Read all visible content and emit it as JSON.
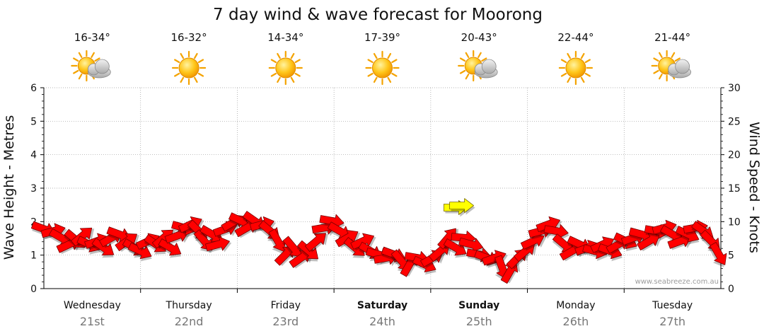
{
  "chart_data": {
    "type": "line",
    "title": "7 day wind & wave forecast for Moorong",
    "ylabel_left": "Wave Height - Metres",
    "ylabel_right": "Wind Speed - Knots",
    "ylim_left": [
      0,
      6
    ],
    "ylim_right": [
      0,
      30
    ],
    "left_ticks": [
      "0",
      "1",
      "2",
      "3",
      "4",
      "5",
      "6"
    ],
    "right_ticks": [
      "0",
      "5",
      "10",
      "15",
      "20",
      "25",
      "30"
    ],
    "grid": true,
    "watermark": "www.seabreeze.com.au",
    "days": [
      {
        "name": "Wednesday",
        "date": "21st",
        "temp": "16-34°",
        "weather": "partly-cloudy",
        "bold": false
      },
      {
        "name": "Thursday",
        "date": "22nd",
        "temp": "16-32°",
        "weather": "sunny",
        "bold": false
      },
      {
        "name": "Friday",
        "date": "23rd",
        "temp": "14-34°",
        "weather": "sunny",
        "bold": false
      },
      {
        "name": "Saturday",
        "date": "24th",
        "temp": "17-39°",
        "weather": "sunny",
        "bold": true
      },
      {
        "name": "Sunday",
        "date": "25th",
        "temp": "20-43°",
        "weather": "partly-cloudy",
        "bold": true
      },
      {
        "name": "Monday",
        "date": "26th",
        "temp": "22-44°",
        "weather": "sunny",
        "bold": false
      },
      {
        "name": "Tuesday",
        "date": "27th",
        "temp": "21-44°",
        "weather": "partly-cloudy",
        "bold": false
      }
    ],
    "wind_series": {
      "name": "Wind",
      "unit": "knots",
      "points": [
        {
          "t": 0.0,
          "speed": 8.9,
          "dir": 20
        },
        {
          "t": 0.1,
          "speed": 8.6,
          "dir": -15
        },
        {
          "t": 0.18,
          "speed": 7.6,
          "dir": 30
        },
        {
          "t": 0.26,
          "speed": 6.6,
          "dir": -25
        },
        {
          "t": 0.33,
          "speed": 7.3,
          "dir": 40
        },
        {
          "t": 0.4,
          "speed": 7.9,
          "dir": -40
        },
        {
          "t": 0.47,
          "speed": 6.6,
          "dir": 25
        },
        {
          "t": 0.55,
          "speed": 7.1,
          "dir": -20
        },
        {
          "t": 0.62,
          "speed": 6.1,
          "dir": 35
        },
        {
          "t": 0.7,
          "speed": 7.6,
          "dir": -30
        },
        {
          "t": 0.78,
          "speed": 8.1,
          "dir": 20
        },
        {
          "t": 0.86,
          "speed": 7.1,
          "dir": -35
        },
        {
          "t": 0.94,
          "speed": 6.1,
          "dir": 30
        },
        {
          "t": 1.0,
          "speed": 5.6,
          "dir": 25
        },
        {
          "t": 1.08,
          "speed": 7.1,
          "dir": -25
        },
        {
          "t": 1.16,
          "speed": 6.6,
          "dir": 35
        },
        {
          "t": 1.24,
          "speed": 7.6,
          "dir": -40
        },
        {
          "t": 1.31,
          "speed": 6.1,
          "dir": 30
        },
        {
          "t": 1.38,
          "speed": 7.9,
          "dir": -20
        },
        {
          "t": 1.45,
          "speed": 9.1,
          "dir": 15
        },
        {
          "t": 1.52,
          "speed": 9.6,
          "dir": -25
        },
        {
          "t": 1.6,
          "speed": 8.6,
          "dir": 45
        },
        {
          "t": 1.66,
          "speed": 7.1,
          "dir": 50
        },
        {
          "t": 1.74,
          "speed": 8.1,
          "dir": 30
        },
        {
          "t": 1.8,
          "speed": 6.6,
          "dir": -15
        },
        {
          "t": 1.88,
          "speed": 8.9,
          "dir": -20
        },
        {
          "t": 1.96,
          "speed": 9.9,
          "dir": -30
        },
        {
          "t": 2.04,
          "speed": 10.1,
          "dir": 25
        },
        {
          "t": 2.1,
          "speed": 9.1,
          "dir": -30
        },
        {
          "t": 2.18,
          "speed": 10.1,
          "dir": 35
        },
        {
          "t": 2.26,
          "speed": 9.6,
          "dir": -15
        },
        {
          "t": 2.34,
          "speed": 8.6,
          "dir": 40
        },
        {
          "t": 2.42,
          "speed": 7.1,
          "dir": 60
        },
        {
          "t": 2.5,
          "speed": 5.1,
          "dir": -45
        },
        {
          "t": 2.58,
          "speed": 6.1,
          "dir": 50
        },
        {
          "t": 2.66,
          "speed": 4.6,
          "dir": -35
        },
        {
          "t": 2.74,
          "speed": 5.6,
          "dir": 40
        },
        {
          "t": 2.82,
          "speed": 7.1,
          "dir": -40
        },
        {
          "t": 2.9,
          "speed": 9.1,
          "dir": -10
        },
        {
          "t": 2.98,
          "speed": 10.1,
          "dir": 10
        },
        {
          "t": 3.06,
          "speed": 8.6,
          "dir": 30
        },
        {
          "t": 3.14,
          "speed": 7.6,
          "dir": -30
        },
        {
          "t": 3.22,
          "speed": 6.1,
          "dir": 40
        },
        {
          "t": 3.3,
          "speed": 7.1,
          "dir": -25
        },
        {
          "t": 3.38,
          "speed": 5.6,
          "dir": 30
        },
        {
          "t": 3.46,
          "speed": 5.1,
          "dir": 15
        },
        {
          "t": 3.54,
          "speed": 4.6,
          "dir": -10
        },
        {
          "t": 3.62,
          "speed": 5.1,
          "dir": 20
        },
        {
          "t": 3.7,
          "speed": 4.1,
          "dir": 50
        },
        {
          "t": 3.78,
          "speed": 3.6,
          "dir": -60
        },
        {
          "t": 3.86,
          "speed": 4.6,
          "dir": 10
        },
        {
          "t": 3.94,
          "speed": 3.6,
          "dir": 25
        },
        {
          "t": 4.02,
          "speed": 4.6,
          "dir": -30
        },
        {
          "t": 4.1,
          "speed": 5.6,
          "dir": -40
        },
        {
          "t": 4.18,
          "speed": 7.6,
          "dir": -50
        },
        {
          "t": 4.26,
          "speed": 6.1,
          "dir": 30
        },
        {
          "t": 4.34,
          "speed": 7.6,
          "dir": 5
        },
        {
          "t": 4.42,
          "speed": 6.6,
          "dir": 15
        },
        {
          "t": 4.5,
          "speed": 5.1,
          "dir": 10
        },
        {
          "t": 4.58,
          "speed": 4.6,
          "dir": 20
        },
        {
          "t": 4.66,
          "speed": 4.6,
          "dir": -20
        },
        {
          "t": 4.74,
          "speed": 3.1,
          "dir": 70
        },
        {
          "t": 4.82,
          "speed": 2.6,
          "dir": -60
        },
        {
          "t": 4.9,
          "speed": 4.6,
          "dir": -45
        },
        {
          "t": 4.98,
          "speed": 5.6,
          "dir": -40
        },
        {
          "t": 5.06,
          "speed": 7.1,
          "dir": -25
        },
        {
          "t": 5.14,
          "speed": 8.6,
          "dir": -15
        },
        {
          "t": 5.22,
          "speed": 9.6,
          "dir": -20
        },
        {
          "t": 5.3,
          "speed": 8.6,
          "dir": 10
        },
        {
          "t": 5.38,
          "speed": 6.6,
          "dir": 40
        },
        {
          "t": 5.46,
          "speed": 5.6,
          "dir": -30
        },
        {
          "t": 5.54,
          "speed": 6.6,
          "dir": 25
        },
        {
          "t": 5.62,
          "speed": 6.1,
          "dir": -20
        },
        {
          "t": 5.7,
          "speed": 5.6,
          "dir": 15
        },
        {
          "t": 5.78,
          "speed": 6.6,
          "dir": -25
        },
        {
          "t": 5.86,
          "speed": 5.6,
          "dir": 20
        },
        {
          "t": 5.94,
          "speed": 6.6,
          "dir": -30
        },
        {
          "t": 6.02,
          "speed": 7.1,
          "dir": 25
        },
        {
          "t": 6.1,
          "speed": 7.6,
          "dir": -20
        },
        {
          "t": 6.18,
          "speed": 8.1,
          "dir": 15
        },
        {
          "t": 6.26,
          "speed": 7.1,
          "dir": -30
        },
        {
          "t": 6.34,
          "speed": 8.6,
          "dir": 10
        },
        {
          "t": 6.42,
          "speed": 9.1,
          "dir": -15
        },
        {
          "t": 6.5,
          "speed": 8.1,
          "dir": 30
        },
        {
          "t": 6.58,
          "speed": 7.1,
          "dir": -20
        },
        {
          "t": 6.66,
          "speed": 8.1,
          "dir": 25
        },
        {
          "t": 6.74,
          "speed": 9.1,
          "dir": -10
        },
        {
          "t": 6.82,
          "speed": 8.6,
          "dir": 35
        },
        {
          "t": 6.9,
          "speed": 7.1,
          "dir": 45
        },
        {
          "t": 6.98,
          "speed": 5.1,
          "dir": 60
        }
      ]
    },
    "highlight_arrows": [
      {
        "t": 4.26,
        "speed": 12.1,
        "dir": 0
      },
      {
        "t": 4.32,
        "speed": 12.4,
        "dir": 0
      }
    ]
  },
  "colors": {
    "arrow_fill": "#ff0000",
    "arrow_stroke": "#7a0000",
    "highlight_fill": "#ffff00",
    "highlight_stroke": "#7a6a00",
    "grid": "#9a9a9a",
    "axis": "#000000",
    "date_text": "#777777",
    "watermark": "#9c9c9c"
  }
}
